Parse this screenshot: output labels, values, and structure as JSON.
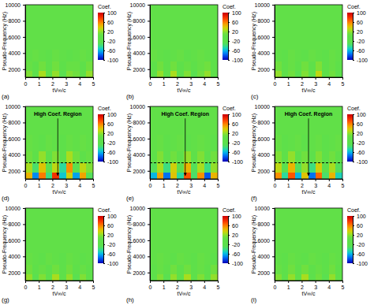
{
  "chart_data": [
    {
      "type": "heatmap",
      "label": "(a)",
      "xlabel": "tV∞/c",
      "ylabel": "Pseudo-Frequency (Hz)",
      "xlim": [
        0,
        5
      ],
      "xticks": [
        0,
        1,
        2,
        3,
        4,
        5
      ],
      "ylim": [
        1000,
        10000
      ],
      "yticks": [
        2000,
        4000,
        6000,
        8000,
        10000
      ],
      "x_edges": [
        0,
        0.5,
        1,
        1.5,
        2,
        2.5,
        3,
        3.5,
        4,
        4.5,
        5
      ],
      "y_edges": [
        1000,
        1800,
        3000,
        4500,
        6500,
        8500,
        10000
      ],
      "cells": [
        [
          15,
          -20,
          25,
          -10,
          20,
          -25,
          15,
          10,
          -15,
          20
        ],
        [
          5,
          -10,
          10,
          -5,
          10,
          -10,
          5,
          5,
          -5,
          10
        ],
        [
          0,
          5,
          0,
          -5,
          5,
          0,
          -5,
          0,
          5,
          0
        ],
        [
          0,
          0,
          0,
          0,
          0,
          0,
          0,
          0,
          0,
          0
        ],
        [
          0,
          0,
          0,
          0,
          0,
          0,
          0,
          0,
          0,
          0
        ],
        [
          0,
          0,
          0,
          0,
          0,
          0,
          0,
          0,
          0,
          0
        ]
      ],
      "colorbar": {
        "label": "Coef.",
        "range": [
          -100,
          100
        ],
        "ticks": [
          -100,
          -60,
          -20,
          20,
          60,
          100
        ]
      }
    },
    {
      "type": "heatmap",
      "label": "(b)",
      "xlabel": "tV∞/c",
      "ylabel": "Pseudo-Frequency (Hz)",
      "xlim": [
        0,
        5
      ],
      "xticks": [
        0,
        1,
        2,
        3,
        4,
        5
      ],
      "ylim": [
        1000,
        10000
      ],
      "yticks": [
        2000,
        4000,
        6000,
        8000,
        10000
      ],
      "x_edges": [
        0,
        0.5,
        1,
        1.5,
        2,
        2.5,
        3,
        3.5,
        4,
        4.5,
        5
      ],
      "y_edges": [
        1000,
        1800,
        3000,
        4500,
        6500,
        8500,
        10000
      ],
      "cells": [
        [
          -15,
          20,
          -10,
          25,
          -20,
          15,
          -25,
          10,
          20,
          -10
        ],
        [
          -5,
          10,
          -5,
          10,
          -10,
          5,
          -10,
          5,
          10,
          -5
        ],
        [
          5,
          0,
          -5,
          0,
          5,
          -5,
          0,
          5,
          0,
          -5
        ],
        [
          0,
          0,
          0,
          0,
          0,
          0,
          0,
          0,
          0,
          0
        ],
        [
          0,
          0,
          0,
          0,
          0,
          0,
          0,
          0,
          0,
          0
        ],
        [
          0,
          0,
          0,
          0,
          0,
          0,
          0,
          0,
          0,
          0
        ]
      ],
      "colorbar": {
        "label": "Coef.",
        "range": [
          -100,
          100
        ],
        "ticks": [
          -100,
          -60,
          -20,
          20,
          60,
          100
        ]
      }
    },
    {
      "type": "heatmap",
      "label": "(c)",
      "xlabel": "tV∞/c",
      "ylabel": "Pseudo-Frequency (Hz)",
      "xlim": [
        0,
        5
      ],
      "xticks": [
        0,
        1,
        2,
        3,
        4,
        5
      ],
      "ylim": [
        1000,
        10000
      ],
      "yticks": [
        2000,
        4000,
        6000,
        8000,
        10000
      ],
      "x_edges": [
        0,
        0.5,
        1,
        1.5,
        2,
        2.5,
        3,
        3.5,
        4,
        4.5,
        5
      ],
      "y_edges": [
        1000,
        1800,
        3000,
        4500,
        6500,
        8500,
        10000
      ],
      "cells": [
        [
          20,
          -15,
          10,
          -25,
          15,
          -20,
          30,
          -15,
          10,
          -20
        ],
        [
          10,
          -5,
          5,
          -10,
          10,
          -5,
          15,
          -10,
          5,
          -5
        ],
        [
          0,
          -5,
          5,
          0,
          -5,
          5,
          0,
          -5,
          5,
          0
        ],
        [
          0,
          0,
          0,
          0,
          0,
          0,
          0,
          0,
          0,
          0
        ],
        [
          0,
          0,
          0,
          0,
          0,
          0,
          0,
          0,
          0,
          0
        ],
        [
          0,
          0,
          0,
          0,
          0,
          0,
          0,
          0,
          0,
          0
        ]
      ],
      "colorbar": {
        "label": "Coef.",
        "range": [
          -100,
          100
        ],
        "ticks": [
          -100,
          -60,
          -20,
          20,
          60,
          100
        ]
      }
    },
    {
      "type": "heatmap",
      "label": "(d)",
      "xlabel": "tV∞/c",
      "ylabel": "Pseudo-Frequency (Hz)",
      "xlim": [
        0,
        5
      ],
      "xticks": [
        0,
        1,
        2,
        3,
        4,
        5
      ],
      "ylim": [
        1000,
        10000
      ],
      "yticks": [
        2000,
        4000,
        6000,
        8000,
        10000
      ],
      "x_edges": [
        0,
        0.5,
        1,
        1.5,
        2,
        2.5,
        3,
        3.5,
        4,
        4.5,
        5
      ],
      "y_edges": [
        1000,
        1800,
        3000,
        4500,
        6500,
        8500,
        10000
      ],
      "cells": [
        [
          45,
          -70,
          60,
          -40,
          80,
          -55,
          35,
          -65,
          50,
          -30
        ],
        [
          25,
          -35,
          40,
          -20,
          30,
          -45,
          55,
          -25,
          30,
          15
        ],
        [
          10,
          -15,
          20,
          -10,
          15,
          -20,
          25,
          10,
          -15,
          5
        ],
        [
          5,
          0,
          -5,
          5,
          0,
          -5,
          5,
          0,
          5,
          0
        ],
        [
          0,
          0,
          0,
          0,
          0,
          0,
          0,
          0,
          0,
          0
        ],
        [
          0,
          0,
          0,
          0,
          0,
          0,
          0,
          0,
          0,
          0
        ]
      ],
      "hlines": [
        {
          "value": 3000,
          "line_style": "dashed"
        }
      ],
      "annotations": [
        {
          "text": "High Coef. Region",
          "x": 2.4,
          "y": 1400,
          "text_x": 2.4,
          "text_y": 8800
        }
      ],
      "colorbar": {
        "label": "Coef.",
        "range": [
          -100,
          100
        ],
        "ticks": [
          -100,
          -60,
          -20,
          20,
          60,
          100
        ]
      }
    },
    {
      "type": "heatmap",
      "label": "(e)",
      "xlabel": "tV∞/c",
      "ylabel": "Pseudo-Frequency (Hz)",
      "xlim": [
        0,
        5
      ],
      "xticks": [
        0,
        1,
        2,
        3,
        4,
        5
      ],
      "ylim": [
        1000,
        10000
      ],
      "yticks": [
        2000,
        4000,
        6000,
        8000,
        10000
      ],
      "x_edges": [
        0,
        0.5,
        1,
        1.5,
        2,
        2.5,
        3,
        3.5,
        4,
        4.5,
        5
      ],
      "y_edges": [
        1000,
        1800,
        3000,
        4500,
        6500,
        8500,
        10000
      ],
      "cells": [
        [
          -60,
          50,
          -75,
          40,
          -45,
          70,
          -35,
          55,
          -80,
          45
        ],
        [
          -30,
          25,
          -40,
          35,
          -20,
          45,
          -30,
          25,
          -40,
          20
        ],
        [
          -10,
          15,
          -20,
          10,
          -15,
          20,
          -10,
          15,
          -20,
          10
        ],
        [
          0,
          5,
          -5,
          0,
          5,
          -5,
          0,
          5,
          0,
          -5
        ],
        [
          0,
          0,
          0,
          0,
          0,
          0,
          0,
          0,
          0,
          0
        ],
        [
          0,
          0,
          0,
          0,
          0,
          0,
          0,
          0,
          0,
          0
        ]
      ],
      "hlines": [
        {
          "value": 3000,
          "line_style": "dashed"
        }
      ],
      "annotations": [
        {
          "text": "High Coef. Region",
          "x": 2.6,
          "y": 1400,
          "text_x": 2.6,
          "text_y": 8800
        }
      ],
      "colorbar": {
        "label": "Coef.",
        "range": [
          -100,
          100
        ],
        "ticks": [
          -100,
          -60,
          -20,
          20,
          60,
          100
        ]
      }
    },
    {
      "type": "heatmap",
      "label": "(f)",
      "xlabel": "tV∞/c",
      "ylabel": "Pseudo-Frequency (Hz)",
      "xlim": [
        0,
        5
      ],
      "xticks": [
        0,
        1,
        2,
        3,
        4,
        5
      ],
      "ylim": [
        1000,
        10000
      ],
      "yticks": [
        2000,
        4000,
        6000,
        8000,
        10000
      ],
      "x_edges": [
        0,
        0.5,
        1,
        1.5,
        2,
        2.5,
        3,
        3.5,
        4,
        4.5,
        5
      ],
      "y_edges": [
        1000,
        1800,
        3000,
        4500,
        6500,
        8500,
        10000
      ],
      "cells": [
        [
          55,
          -45,
          70,
          -60,
          40,
          -75,
          65,
          -35,
          45,
          -50
        ],
        [
          30,
          -25,
          45,
          -30,
          20,
          -40,
          35,
          -20,
          25,
          -30
        ],
        [
          15,
          -10,
          20,
          -15,
          10,
          -20,
          15,
          -10,
          10,
          -15
        ],
        [
          5,
          -5,
          0,
          5,
          -5,
          0,
          5,
          -5,
          0,
          5
        ],
        [
          0,
          0,
          0,
          0,
          0,
          0,
          0,
          0,
          0,
          0
        ],
        [
          0,
          0,
          0,
          0,
          0,
          0,
          0,
          0,
          0,
          0
        ]
      ],
      "hlines": [
        {
          "value": 3000,
          "line_style": "dashed"
        }
      ],
      "annotations": [
        {
          "text": "High Coef. Region",
          "x": 2.5,
          "y": 1400,
          "text_x": 2.5,
          "text_y": 8800
        }
      ],
      "colorbar": {
        "label": "Coef.",
        "range": [
          -100,
          100
        ],
        "ticks": [
          -100,
          -60,
          -20,
          20,
          60,
          100
        ]
      }
    },
    {
      "type": "heatmap",
      "label": "(g)",
      "xlabel": "tV∞/c",
      "ylabel": "Pseudo-Frequency (Hz)",
      "xlim": [
        0,
        5
      ],
      "xticks": [
        0,
        1,
        2,
        3,
        4,
        5
      ],
      "ylim": [
        1000,
        10000
      ],
      "yticks": [
        2000,
        4000,
        6000,
        8000,
        10000
      ],
      "x_edges": [
        0,
        0.5,
        1,
        1.5,
        2,
        2.5,
        3,
        3.5,
        4,
        4.5,
        5
      ],
      "y_edges": [
        1000,
        1800,
        3000,
        4500,
        6500,
        8500,
        10000
      ],
      "cells": [
        [
          20,
          -25,
          15,
          -20,
          25,
          -15,
          20,
          -25,
          15,
          -10
        ],
        [
          10,
          -10,
          5,
          -10,
          10,
          -5,
          10,
          -10,
          5,
          -5
        ],
        [
          5,
          0,
          -5,
          5,
          0,
          -5,
          5,
          0,
          -5,
          0
        ],
        [
          0,
          0,
          0,
          0,
          0,
          0,
          0,
          0,
          0,
          0
        ],
        [
          0,
          0,
          0,
          0,
          0,
          0,
          0,
          0,
          0,
          0
        ],
        [
          0,
          0,
          0,
          0,
          0,
          0,
          0,
          0,
          0,
          0
        ]
      ],
      "colorbar": {
        "label": "Coef.",
        "range": [
          -100,
          100
        ],
        "ticks": [
          -100,
          -60,
          -20,
          20,
          60,
          100
        ]
      }
    },
    {
      "type": "heatmap",
      "label": "(h)",
      "xlabel": "tV∞/c",
      "ylabel": "Pseudo-Frequency (Hz)",
      "xlim": [
        0,
        5
      ],
      "xticks": [
        0,
        1,
        2,
        3,
        4,
        5
      ],
      "ylim": [
        1000,
        10000
      ],
      "yticks": [
        2000,
        4000,
        6000,
        8000,
        10000
      ],
      "x_edges": [
        0,
        0.5,
        1,
        1.5,
        2,
        2.5,
        3,
        3.5,
        4,
        4.5,
        5
      ],
      "y_edges": [
        1000,
        1800,
        3000,
        4500,
        6500,
        8500,
        10000
      ],
      "cells": [
        [
          -20,
          15,
          -25,
          20,
          -15,
          25,
          -20,
          15,
          -10,
          20
        ],
        [
          -10,
          5,
          -10,
          10,
          -5,
          10,
          -10,
          5,
          -5,
          10
        ],
        [
          0,
          5,
          0,
          -5,
          5,
          0,
          -5,
          5,
          0,
          -5
        ],
        [
          0,
          0,
          0,
          0,
          0,
          0,
          0,
          0,
          0,
          0
        ],
        [
          0,
          0,
          0,
          0,
          0,
          0,
          0,
          0,
          0,
          0
        ],
        [
          0,
          0,
          0,
          0,
          0,
          0,
          0,
          0,
          0,
          0
        ]
      ],
      "colorbar": {
        "label": "Coef.",
        "range": [
          -100,
          100
        ],
        "ticks": [
          -100,
          -60,
          -20,
          20,
          60,
          100
        ]
      }
    },
    {
      "type": "heatmap",
      "label": "(i)",
      "xlabel": "tV∞/c",
      "ylabel": "Pseudo-Frequency (Hz)",
      "xlim": [
        0,
        5
      ],
      "xticks": [
        0,
        1,
        2,
        3,
        4,
        5
      ],
      "ylim": [
        1000,
        10000
      ],
      "yticks": [
        2000,
        4000,
        6000,
        8000,
        10000
      ],
      "x_edges": [
        0,
        0.5,
        1,
        1.5,
        2,
        2.5,
        3,
        3.5,
        4,
        4.5,
        5
      ],
      "y_edges": [
        1000,
        1800,
        3000,
        4500,
        6500,
        8500,
        10000
      ],
      "cells": [
        [
          15,
          -20,
          20,
          -15,
          25,
          -20,
          10,
          -25,
          20,
          -15
        ],
        [
          5,
          -10,
          10,
          -5,
          10,
          -10,
          5,
          -10,
          10,
          -5
        ],
        [
          0,
          -5,
          5,
          0,
          -5,
          5,
          0,
          -5,
          5,
          0
        ],
        [
          0,
          0,
          0,
          0,
          0,
          0,
          0,
          0,
          0,
          0
        ],
        [
          0,
          0,
          0,
          0,
          0,
          0,
          0,
          0,
          0,
          0
        ],
        [
          0,
          0,
          0,
          0,
          0,
          0,
          0,
          0,
          0,
          0
        ]
      ],
      "colorbar": {
        "label": "Coef.",
        "range": [
          -100,
          100
        ],
        "ticks": [
          -100,
          -60,
          -20,
          20,
          60,
          100
        ]
      }
    }
  ]
}
